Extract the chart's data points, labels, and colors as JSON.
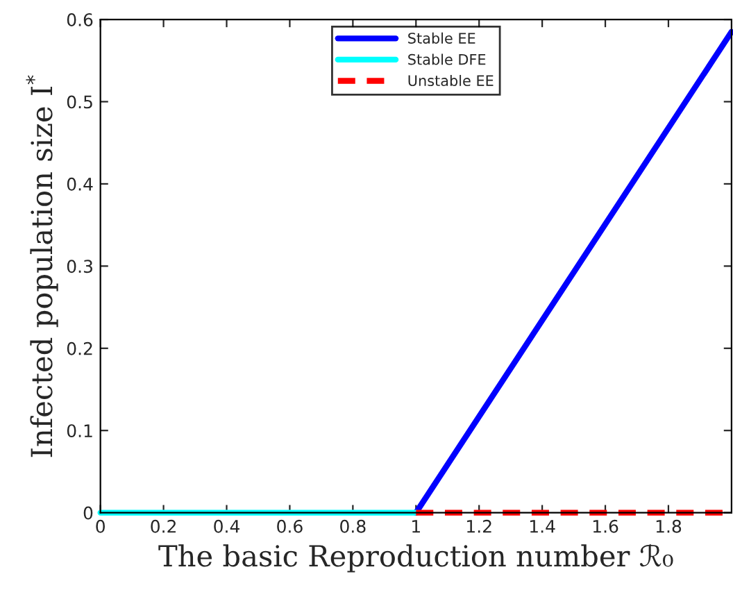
{
  "chart_data": {
    "type": "line",
    "xlabel": "The basic Reproduction number ℛ₀",
    "ylabel": "Infected population size I$^{*}$",
    "xlim": [
      0,
      2
    ],
    "xticks": [
      0,
      0.2,
      0.4,
      0.6,
      0.8,
      1,
      1.2,
      1.4,
      1.6,
      1.8
    ],
    "ylim": [
      0,
      0.6
    ],
    "yticks": [
      0,
      0.1,
      0.2,
      0.3,
      0.4,
      0.5,
      0.6
    ],
    "series": [
      {
        "name": "Stable EE",
        "color": "#0000ff",
        "x": [
          1,
          2
        ],
        "values": [
          0,
          0.585
        ],
        "line_style": "solid"
      },
      {
        "name": "Stable DFE",
        "color": "#00ffff",
        "x": [
          0,
          1
        ],
        "values": [
          0,
          0
        ],
        "line_style": "solid"
      },
      {
        "name": "Unstable EE",
        "color": "#ff0000",
        "x": [
          1,
          2
        ],
        "values": [
          0,
          0
        ],
        "line_style": "dashed"
      }
    ],
    "legend": "top",
    "grid": false,
    "marker": "none"
  }
}
